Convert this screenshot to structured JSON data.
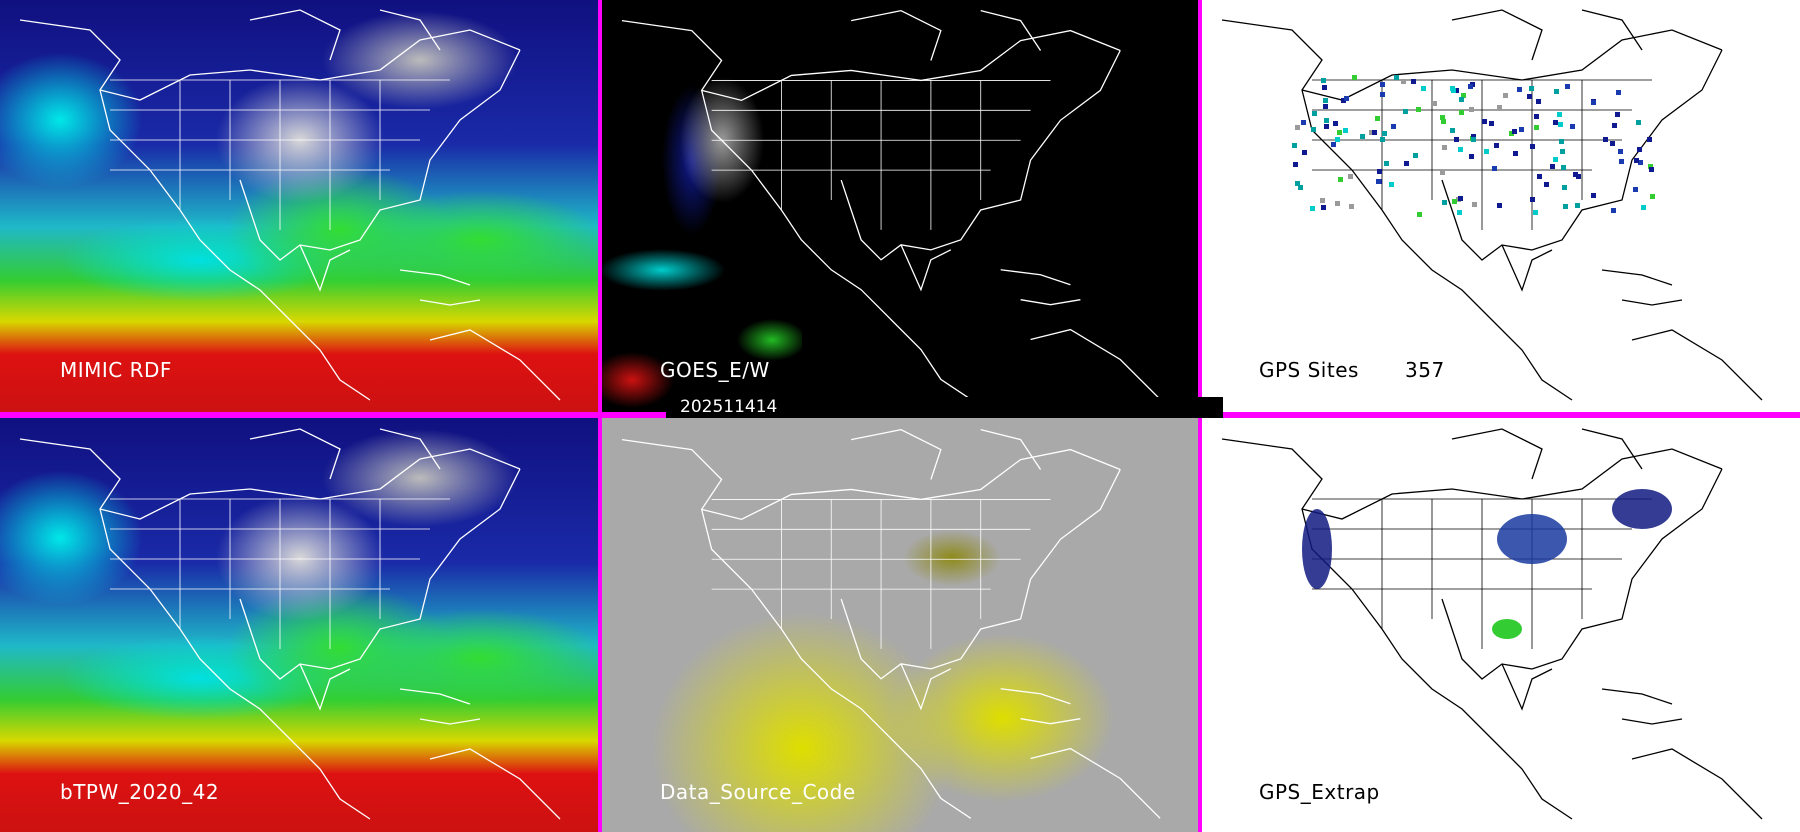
{
  "panels": [
    {
      "id": "mimic",
      "label": "MIMIC RDF"
    },
    {
      "id": "goes",
      "label": "GOES_E/W",
      "timestamp": "202511414"
    },
    {
      "id": "gps_sites",
      "label": "GPS Sites",
      "count": "357"
    },
    {
      "id": "btpw",
      "label": "bTPW_2020_42"
    },
    {
      "id": "dsc",
      "label": "Data_Source_Code"
    },
    {
      "id": "gps_extrap",
      "label": "GPS_Extrap"
    }
  ],
  "colors": {
    "separator": "#ff00ff",
    "goes_background": "#000000",
    "gps_background": "#ffffff",
    "dsc_background": "#a9a9a9",
    "dsc_yellow": "#dede00"
  }
}
